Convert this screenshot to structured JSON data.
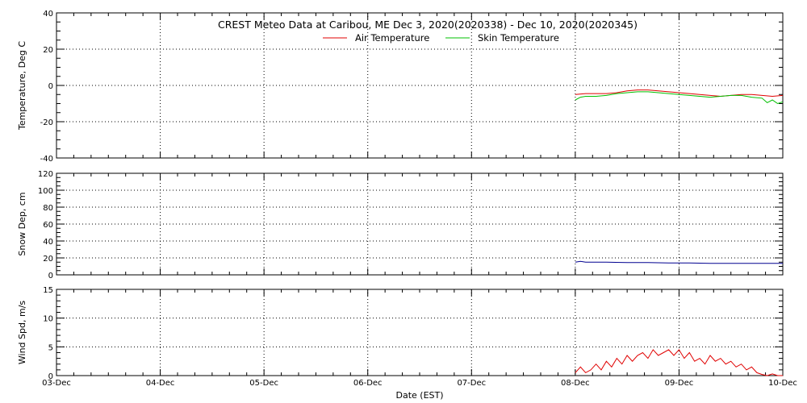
{
  "title": "CREST Meteo Data at Caribou, ME   Dec  3, 2020(2020338) - Dec 10, 2020(2020345)",
  "colors": {
    "air_temperature": "#e00000",
    "skin_temperature": "#00c000",
    "snow_depth": "#000090",
    "wind_speed": "#e00000",
    "grid": "#000000"
  },
  "chart_data": [
    {
      "type": "line",
      "panel": "temperature",
      "ylabel": "Temperature, Deg C",
      "ylim": [
        -40,
        40
      ],
      "yticks": [
        -40,
        -20,
        0,
        20,
        40
      ],
      "grid": true,
      "legend_position": "top-center",
      "series": [
        {
          "name": "Air Temperature",
          "color": "#e00000",
          "x": [
            5.0,
            5.1,
            5.2,
            5.3,
            5.4,
            5.5,
            5.6,
            5.7,
            5.8,
            5.9,
            6.0,
            6.1,
            6.2,
            6.3,
            6.4,
            6.5,
            6.6,
            6.7,
            6.8,
            6.9,
            7.0
          ],
          "values": [
            -5.0,
            -4.5,
            -4.5,
            -4.5,
            -4.0,
            -3.0,
            -2.5,
            -2.5,
            -3.0,
            -3.5,
            -4.0,
            -4.5,
            -5.0,
            -5.5,
            -6.0,
            -5.5,
            -5.0,
            -5.0,
            -5.5,
            -6.0,
            -5.5
          ]
        },
        {
          "name": "Skin Temperature",
          "color": "#00c000",
          "x": [
            5.0,
            5.05,
            5.1,
            5.2,
            5.3,
            5.4,
            5.5,
            5.6,
            5.7,
            5.8,
            5.9,
            6.0,
            6.1,
            6.2,
            6.3,
            6.4,
            6.5,
            6.6,
            6.7,
            6.8,
            6.85,
            6.9,
            6.95,
            7.0
          ],
          "values": [
            -8.0,
            -6.5,
            -6.0,
            -6.0,
            -5.5,
            -4.5,
            -4.0,
            -3.5,
            -3.5,
            -4.0,
            -4.5,
            -5.0,
            -5.5,
            -6.0,
            -6.5,
            -6.0,
            -5.5,
            -5.5,
            -6.5,
            -7.0,
            -9.5,
            -8.0,
            -10.0,
            -9.0
          ]
        }
      ]
    },
    {
      "type": "line",
      "panel": "snow_depth",
      "ylabel": "Snow Dep, cm",
      "ylim": [
        0,
        120
      ],
      "yticks": [
        0,
        20,
        40,
        60,
        80,
        100,
        120
      ],
      "grid": true,
      "series": [
        {
          "color": "#000090",
          "x": [
            5.0,
            5.05,
            5.1,
            5.3,
            5.5,
            5.7,
            5.9,
            6.1,
            6.3,
            6.5,
            6.7,
            6.9,
            7.0
          ],
          "values": [
            15.0,
            16.0,
            15.0,
            15.0,
            14.5,
            14.5,
            14.0,
            14.0,
            13.5,
            13.5,
            13.5,
            13.5,
            13.5
          ]
        }
      ]
    },
    {
      "type": "line",
      "panel": "wind_speed",
      "ylabel": "Wind Spd, m/s",
      "xlabel": "Date (EST)",
      "ylim": [
        0,
        15
      ],
      "yticks": [
        0,
        5,
        10,
        15
      ],
      "grid": true,
      "series": [
        {
          "color": "#e00000",
          "x": [
            5.0,
            5.05,
            5.1,
            5.15,
            5.2,
            5.25,
            5.3,
            5.35,
            5.4,
            5.45,
            5.5,
            5.55,
            5.6,
            5.65,
            5.7,
            5.75,
            5.8,
            5.85,
            5.9,
            5.95,
            6.0,
            6.05,
            6.1,
            6.15,
            6.2,
            6.25,
            6.3,
            6.35,
            6.4,
            6.45,
            6.5,
            6.55,
            6.6,
            6.65,
            6.7,
            6.75,
            6.8,
            6.85,
            6.9,
            6.95,
            7.0
          ],
          "values": [
            0.5,
            1.5,
            0.5,
            1.0,
            2.0,
            1.0,
            2.5,
            1.5,
            3.0,
            2.0,
            3.5,
            2.5,
            3.5,
            4.0,
            3.0,
            4.5,
            3.5,
            4.0,
            4.5,
            3.5,
            4.5,
            3.0,
            4.0,
            2.5,
            3.0,
            2.0,
            3.5,
            2.5,
            3.0,
            2.0,
            2.5,
            1.5,
            2.0,
            1.0,
            1.5,
            0.5,
            0.2,
            0.0,
            0.3,
            0.0,
            0.0
          ]
        }
      ]
    }
  ],
  "x_axis": {
    "label": "Date (EST)",
    "range": [
      0,
      7
    ],
    "ticks": [
      {
        "value": 0,
        "label": "03-Dec"
      },
      {
        "value": 1,
        "label": "04-Dec"
      },
      {
        "value": 2,
        "label": "05-Dec"
      },
      {
        "value": 3,
        "label": "06-Dec"
      },
      {
        "value": 4,
        "label": "07-Dec"
      },
      {
        "value": 5,
        "label": "08-Dec"
      },
      {
        "value": 6,
        "label": "09-Dec"
      },
      {
        "value": 7,
        "label": "10-Dec"
      }
    ]
  }
}
